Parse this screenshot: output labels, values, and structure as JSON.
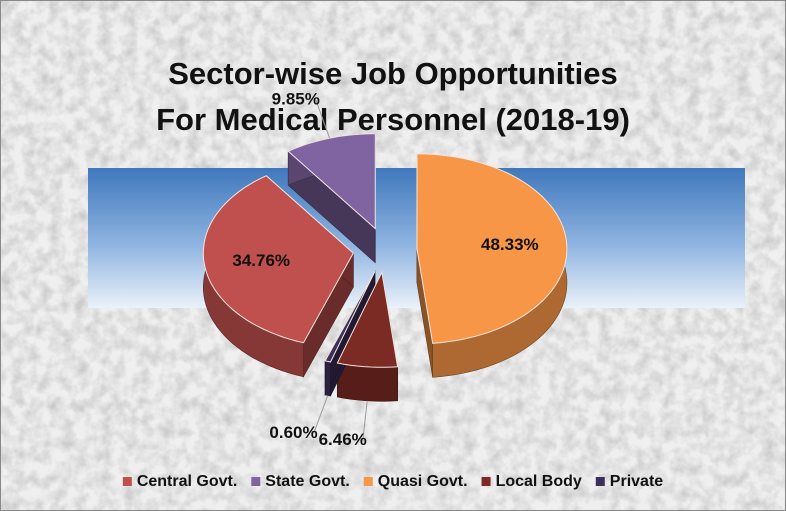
{
  "chart_data": {
    "type": "pie",
    "title": "Sector-wise Job Opportunities For Medical Personnel (2018-19)",
    "categories": [
      "Central Govt.",
      "State Govt.",
      "Quasi Govt.",
      "Local Body",
      "Private"
    ],
    "values": [
      34.76,
      9.85,
      48.33,
      6.46,
      0.6
    ],
    "value_labels": [
      "34.76%",
      "9.85%",
      "48.33%",
      "6.46%",
      "0.60%"
    ],
    "colors": [
      "#c0504d",
      "#8064a2",
      "#f79646",
      "#7b2a24",
      "#3d2f5c"
    ],
    "legend": "bottom"
  }
}
